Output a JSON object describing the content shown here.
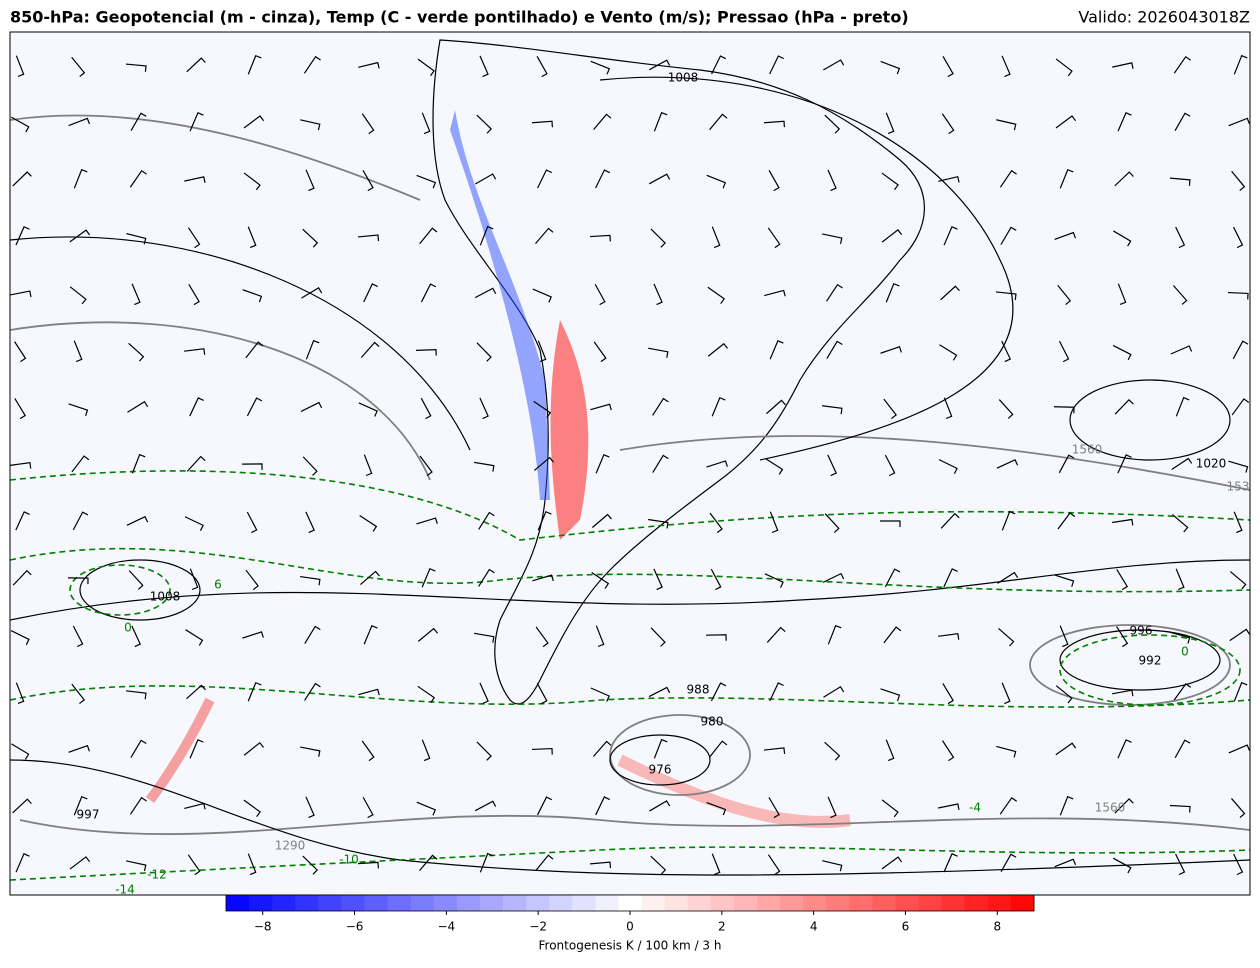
{
  "header": {
    "title": "850-hPa: Geopotencial (m - cinza), Temp (C - verde pontilhado) e Vento (m/s); Pressao (hPa - preto)",
    "valid": "Valido: 2026043018Z"
  },
  "map": {
    "contour_labels": [
      {
        "text": "1008",
        "kind": "pressure"
      },
      {
        "text": "1560",
        "kind": "height"
      },
      {
        "text": "1020",
        "kind": "pressure"
      },
      {
        "text": "153",
        "kind": "height"
      },
      {
        "text": "996",
        "kind": "pressure"
      },
      {
        "text": "992",
        "kind": "pressure"
      },
      {
        "text": "988",
        "kind": "pressure"
      },
      {
        "text": "980",
        "kind": "pressure"
      },
      {
        "text": "976",
        "kind": "pressure"
      },
      {
        "text": "1290",
        "kind": "height"
      },
      {
        "text": "1560",
        "kind": "height"
      },
      {
        "text": "-12",
        "kind": "temperature"
      },
      {
        "text": "-14",
        "kind": "temperature"
      },
      {
        "text": "-10",
        "kind": "temperature"
      },
      {
        "text": "6",
        "kind": "temperature"
      },
      {
        "text": "0",
        "kind": "temperature"
      },
      {
        "text": "-4",
        "kind": "temperature"
      },
      {
        "text": "997",
        "kind": "pressure"
      },
      {
        "text": "1008",
        "kind": "pressure"
      },
      {
        "text": "0",
        "kind": "temperature"
      }
    ]
  },
  "colorbar": {
    "label": "Frontogenesis K / 100 km / 3 h",
    "lim": [
      -8.8,
      8.8
    ],
    "colors": [
      "#0000ff",
      "#ffffff",
      "#ff0000"
    ],
    "ticks": [
      {
        "value": -8,
        "label": "−8"
      },
      {
        "value": -6,
        "label": "−6"
      },
      {
        "value": -4,
        "label": "−4"
      },
      {
        "value": -2,
        "label": "−2"
      },
      0,
      2,
      4,
      6,
      8
    ]
  }
}
